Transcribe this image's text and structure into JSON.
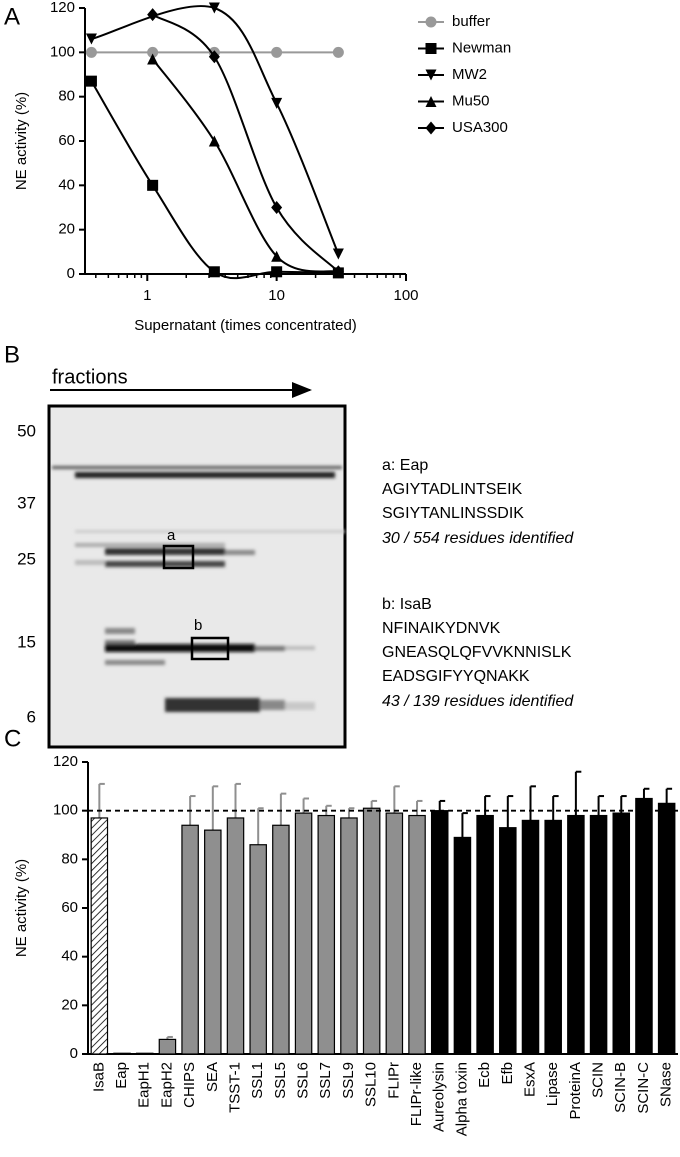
{
  "chart_data": [
    {
      "type": "line",
      "label": "A",
      "y_label": "NE activity (%)",
      "x_label": "Supernatant (times concentrated)",
      "x": [
        0.37,
        1.1,
        3.3,
        10,
        30
      ],
      "log_x": true,
      "xlim": [
        0.33,
        100
      ],
      "xticks": [
        1,
        10,
        100
      ],
      "ylim": [
        0,
        120
      ],
      "yticks": [
        0,
        20,
        40,
        60,
        80,
        100,
        120
      ],
      "legend": "right",
      "series": [
        {
          "name": "buffer",
          "color": "#999999",
          "marker": "circle",
          "values": [
            100,
            100,
            100,
            100,
            100
          ]
        },
        {
          "name": "Newman",
          "color": "#000000",
          "marker": "square",
          "values": [
            87,
            40,
            1,
            1,
            0.5
          ]
        },
        {
          "name": "MW2",
          "color": "#000000",
          "marker": "triangle-down",
          "values": [
            106,
            null,
            120,
            77,
            9
          ]
        },
        {
          "name": "Mu50",
          "color": "#000000",
          "marker": "triangle-up",
          "values": [
            null,
            97,
            60,
            8,
            1
          ]
        },
        {
          "name": "USA300",
          "color": "#000000",
          "marker": "diamond",
          "values": [
            null,
            117,
            98,
            30,
            1
          ]
        }
      ]
    },
    {
      "type": "bar",
      "label": "C",
      "y_label": "NE activity (%)",
      "categories": [
        "IsaB",
        "Eap",
        "EapH1",
        "EapH2",
        "CHIPS",
        "SEA",
        "TSST-1",
        "SSL1",
        "SSL5",
        "SSL6",
        "SSL7",
        "SSL9",
        "SSL10",
        "FLIPr",
        "FLIPr-like",
        "Aureolysin",
        "Alpha toxin",
        "Ecb",
        "Efb",
        "EsxA",
        "Lipase",
        "ProteinA",
        "SCIN",
        "SCIN-B",
        "SCIN-C",
        "SNase"
      ],
      "values": [
        97,
        0.3,
        0.3,
        6,
        94,
        92,
        97,
        86,
        94,
        99,
        98,
        97,
        101,
        99,
        98,
        100,
        89,
        98,
        93,
        96,
        96,
        98,
        98,
        99,
        105,
        103
      ],
      "errors": [
        14,
        0,
        0,
        1,
        12,
        18,
        14,
        15,
        13,
        6,
        4,
        4,
        3,
        11,
        6,
        4,
        10,
        8,
        13,
        14,
        10,
        18,
        8,
        7,
        4,
        6
      ],
      "colors": [
        "#ffffff",
        "#8f8f8f",
        "#8f8f8f",
        "#8f8f8f",
        "#8f8f8f",
        "#8f8f8f",
        "#8f8f8f",
        "#8f8f8f",
        "#8f8f8f",
        "#8f8f8f",
        "#8f8f8f",
        "#8f8f8f",
        "#8f8f8f",
        "#8f8f8f",
        "#8f8f8f",
        "#000000",
        "#000000",
        "#000000",
        "#000000",
        "#000000",
        "#000000",
        "#000000",
        "#000000",
        "#000000",
        "#000000",
        "#000000"
      ],
      "hatched": [
        true,
        false,
        false,
        false,
        false,
        false,
        false,
        false,
        false,
        false,
        false,
        false,
        false,
        false,
        false,
        false,
        false,
        false,
        false,
        false,
        false,
        false,
        false,
        false,
        false,
        false
      ],
      "reference_line": 100,
      "ylim": [
        0,
        120
      ],
      "yticks": [
        0,
        20,
        40,
        60,
        80,
        100,
        120
      ]
    }
  ],
  "gel": {
    "label": "B",
    "arrow_label": "fractions",
    "markers": [
      50,
      37,
      25,
      15,
      6
    ],
    "box_labels": [
      "a",
      "b"
    ],
    "annotations": [
      {
        "title": "a: Eap",
        "peptides": [
          "AGIYTADLINTSEIK",
          "SGIYTANLINSSDIK"
        ],
        "coverage": "30 / 554 residues identified"
      },
      {
        "title": "b: IsaB",
        "peptides": [
          "NFINAIKYDNVK",
          "GNEASQLQFVVKNNISLK",
          "EADSGIFYYQNAKK"
        ],
        "coverage": "43 / 139 residues identified"
      }
    ]
  }
}
